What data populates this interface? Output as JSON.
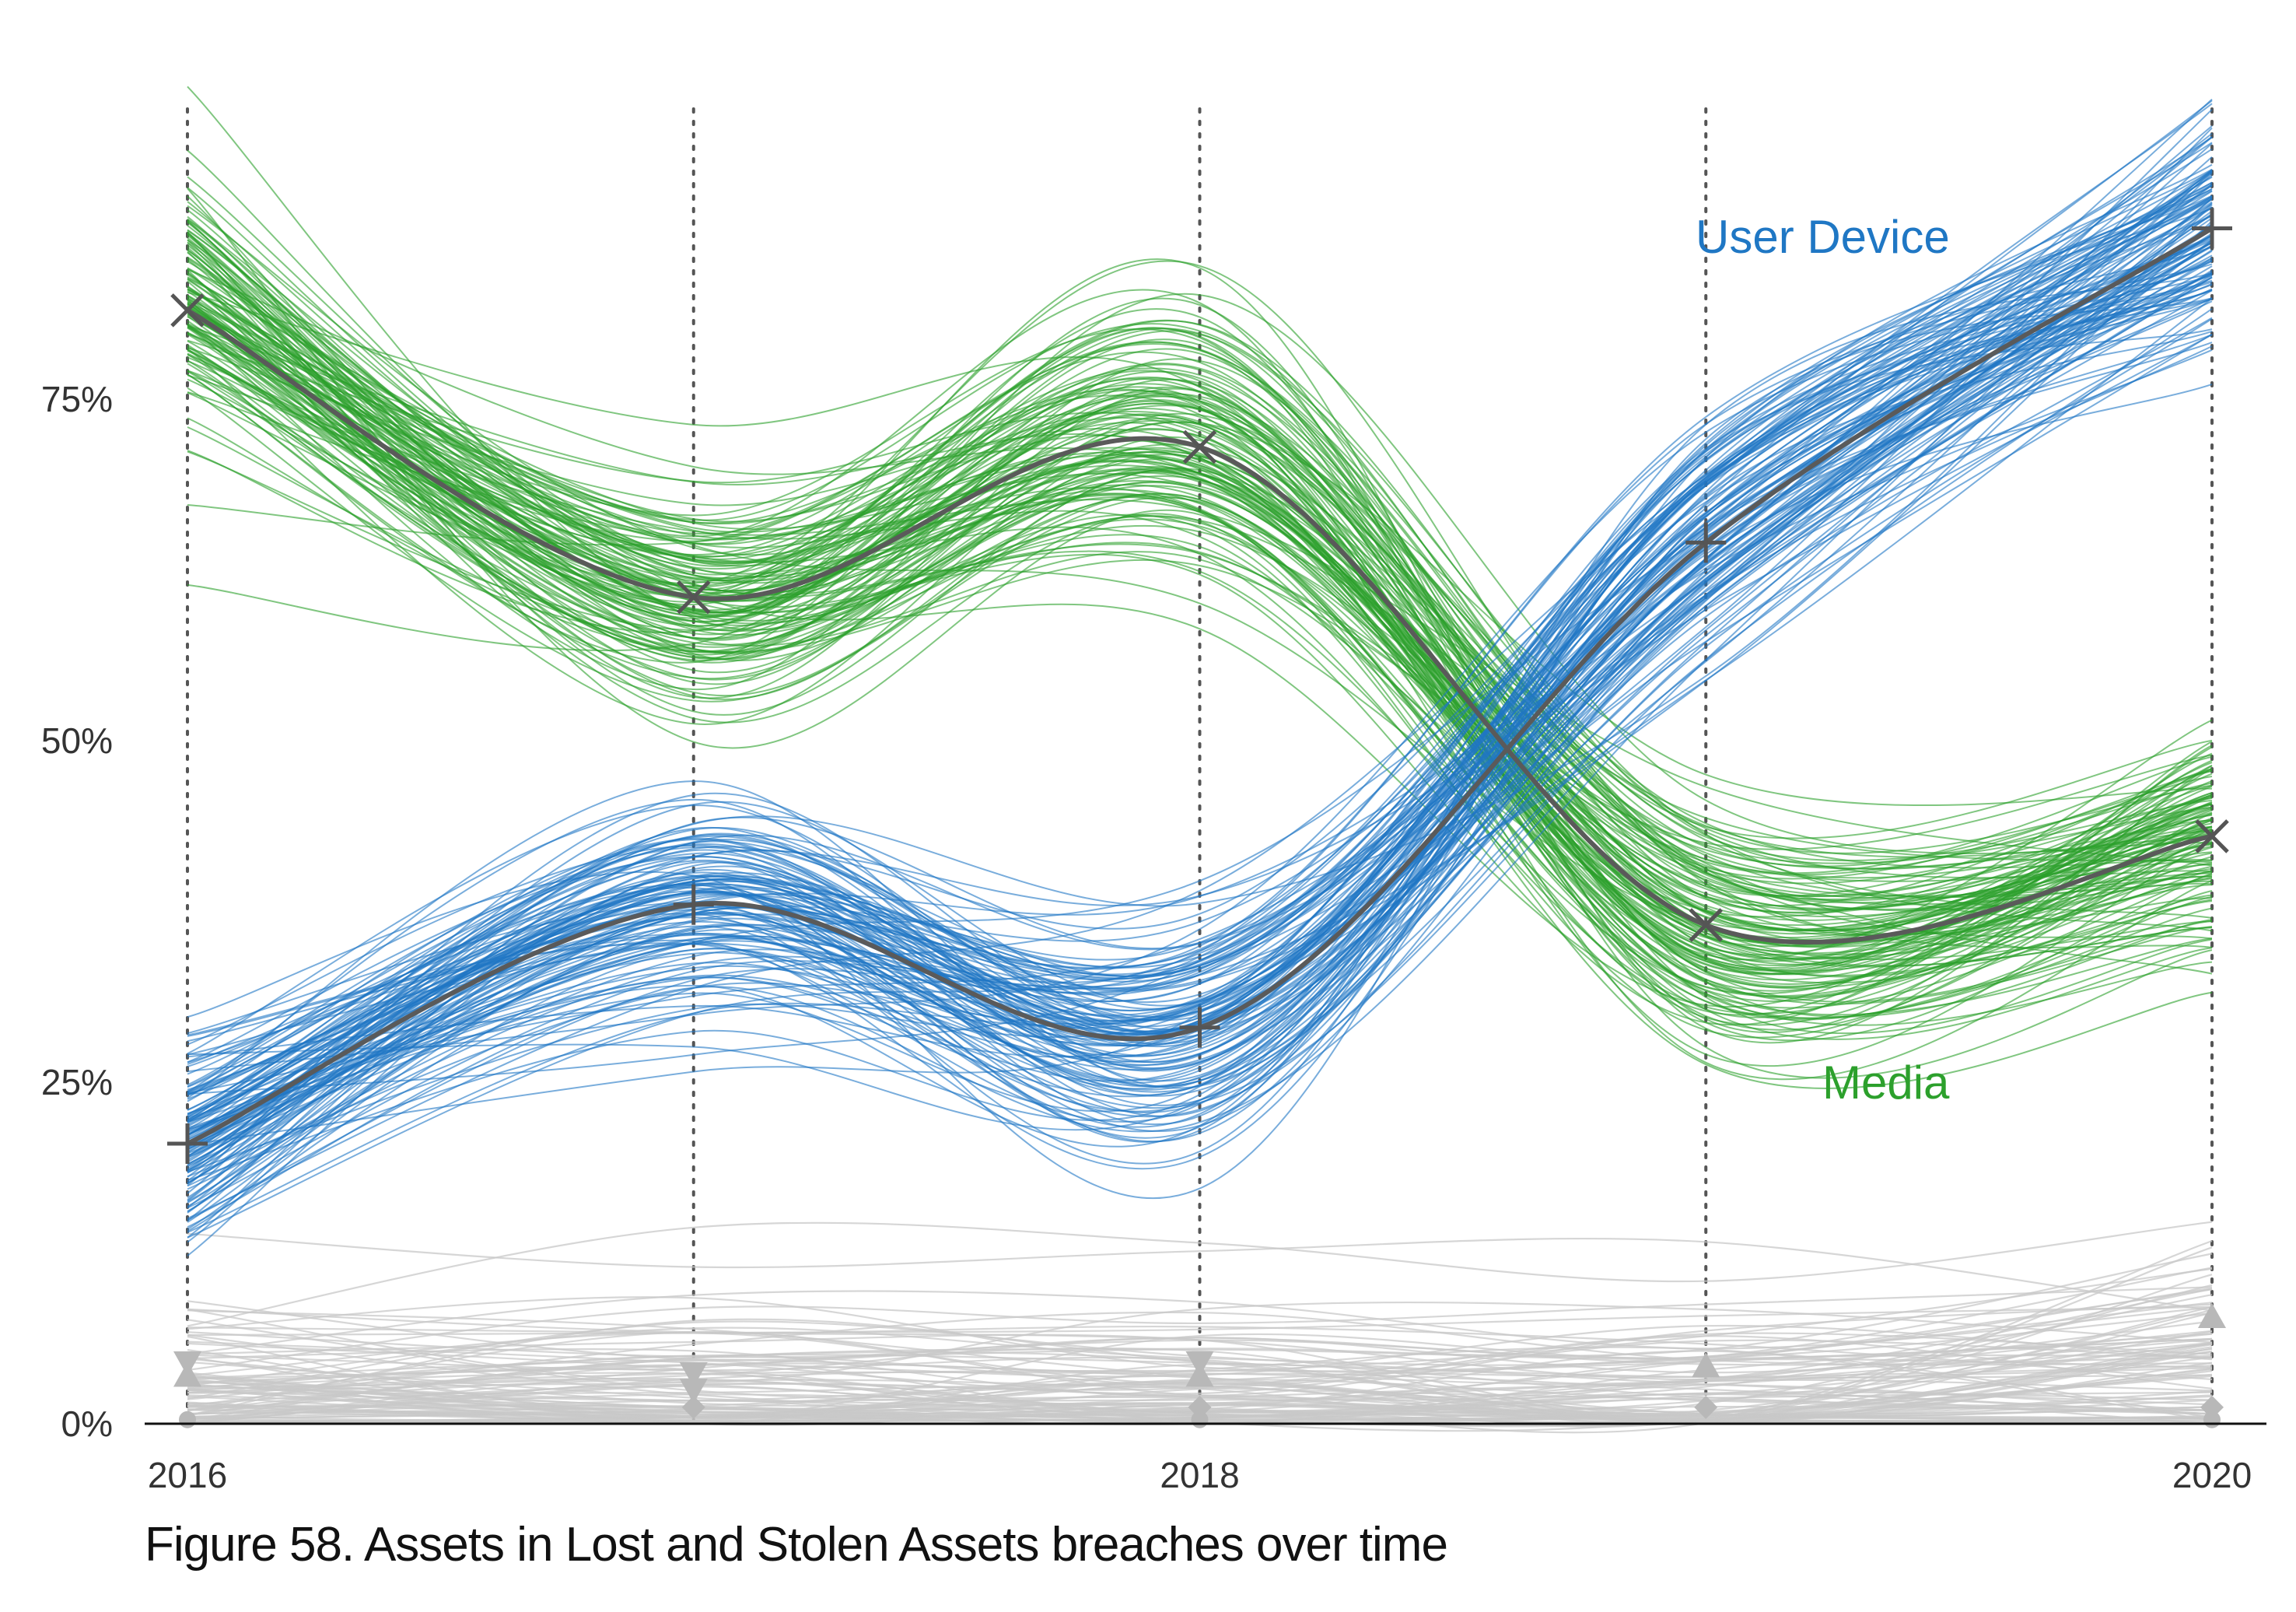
{
  "caption": "Figure 58. Assets in Lost and Stolen Assets breaches over time",
  "chart_data": {
    "type": "line",
    "title": "",
    "xlabel": "",
    "ylabel": "",
    "x": [
      2016,
      2017,
      2018,
      2019,
      2020
    ],
    "x_tick_labels": [
      "2016",
      "",
      "2018",
      "",
      "2020"
    ],
    "y_ticks": [
      0,
      25,
      50,
      75
    ],
    "y_tick_labels": [
      "0%",
      "25%",
      "50%",
      "75%"
    ],
    "ylim": [
      0,
      96
    ],
    "grid": "vertical dotted lines at each year",
    "legend": "inline labels",
    "series": [
      {
        "name": "User Device",
        "marker": "plus",
        "color": "#1f77c4",
        "values": [
          20.5,
          38,
          29,
          64.5,
          87.5
        ]
      },
      {
        "name": "Media",
        "marker": "x",
        "color": "#2ca02c",
        "values": [
          81.5,
          60.5,
          71.5,
          36.5,
          43
        ]
      }
    ],
    "other_series_color": "#c8c8c8",
    "other_series_markers": [
      {
        "x": 2016,
        "y": 4.5,
        "marker": "triangle-down"
      },
      {
        "x": 2016,
        "y": 3.5,
        "marker": "triangle-up"
      },
      {
        "x": 2016,
        "y": 0.3,
        "marker": "circle"
      },
      {
        "x": 2017,
        "y": 3.7,
        "marker": "triangle-down"
      },
      {
        "x": 2017,
        "y": 2.5,
        "marker": "triangle-down"
      },
      {
        "x": 2017,
        "y": 1.2,
        "marker": "diamond"
      },
      {
        "x": 2018,
        "y": 4.5,
        "marker": "triangle-down"
      },
      {
        "x": 2018,
        "y": 3.5,
        "marker": "triangle-up"
      },
      {
        "x": 2018,
        "y": 1.2,
        "marker": "diamond"
      },
      {
        "x": 2018,
        "y": 0.3,
        "marker": "circle"
      },
      {
        "x": 2019,
        "y": 4.2,
        "marker": "triangle-up"
      },
      {
        "x": 2019,
        "y": 1.2,
        "marker": "diamond"
      },
      {
        "x": 2020,
        "y": 7.8,
        "marker": "triangle-up"
      },
      {
        "x": 2020,
        "y": 1.2,
        "marker": "diamond"
      },
      {
        "x": 2020,
        "y": 0.3,
        "marker": "circle"
      }
    ],
    "annotations": [
      {
        "text": "User Device",
        "color": "#1f77c4"
      },
      {
        "text": "Media",
        "color": "#2ca02c"
      }
    ]
  }
}
